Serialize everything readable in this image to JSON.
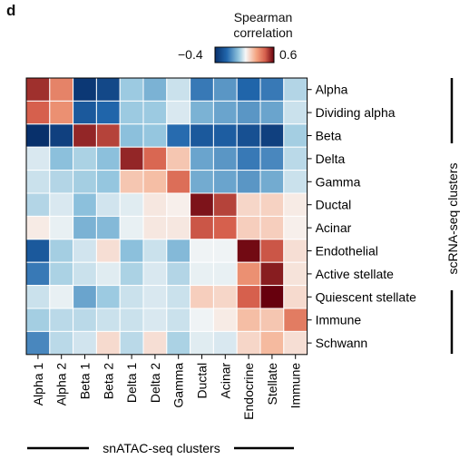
{
  "panel_label": "d",
  "colors": {
    "negative": "#08306b",
    "mid": "#f7f7f7",
    "positive": "#67000d",
    "cell_border": "#ffffff"
  },
  "chart_data": {
    "type": "heatmap",
    "title": "",
    "legend": {
      "title_line1": "Spearman",
      "title_line2": "correlation",
      "min_label": "−0.4",
      "max_label": "0.6",
      "range": [
        -0.4,
        0.6
      ],
      "colormap": "blue-white-red"
    },
    "x_categories": [
      "Alpha 1",
      "Alpha 2",
      "Beta 1",
      "Beta 2",
      "Delta 1",
      "Delta 2",
      "Gamma",
      "Ductal",
      "Acinar",
      "Endocrine",
      "Stellate",
      "Immune"
    ],
    "y_categories": [
      "Alpha",
      "Dividing alpha",
      "Beta",
      "Delta",
      "Gamma",
      "Ductal",
      "Acinar",
      "Endothelial",
      "Active stellate",
      "Quiescent stellate",
      "Immune",
      "Schwann"
    ],
    "xlabel": "snATAC-seq clusters",
    "ylabel": "scRNA-seq clusters",
    "values": [
      [
        0.5,
        0.3,
        -0.38,
        -0.34,
        -0.12,
        -0.16,
        -0.06,
        -0.24,
        -0.2,
        -0.27,
        -0.24,
        -0.09
      ],
      [
        0.4,
        0.26,
        -0.3,
        -0.27,
        -0.12,
        -0.12,
        -0.04,
        -0.16,
        -0.18,
        -0.2,
        -0.18,
        -0.06
      ],
      [
        -0.4,
        -0.36,
        0.52,
        0.46,
        -0.14,
        -0.13,
        -0.26,
        -0.3,
        -0.29,
        -0.32,
        -0.36,
        -0.11
      ],
      [
        -0.04,
        -0.14,
        -0.1,
        -0.14,
        0.52,
        0.38,
        0.12,
        -0.18,
        -0.2,
        -0.24,
        -0.22,
        -0.08
      ],
      [
        -0.06,
        -0.09,
        -0.11,
        -0.13,
        0.12,
        0.14,
        0.36,
        -0.17,
        -0.18,
        -0.2,
        -0.17,
        -0.06
      ],
      [
        -0.09,
        -0.04,
        -0.14,
        -0.05,
        -0.03,
        0.04,
        0.02,
        0.56,
        0.46,
        0.08,
        0.09,
        0.03
      ],
      [
        0.03,
        -0.02,
        -0.16,
        -0.15,
        -0.02,
        0.04,
        0.04,
        0.42,
        0.4,
        0.1,
        0.1,
        0.02
      ],
      [
        -0.3,
        -0.11,
        -0.05,
        0.06,
        -0.14,
        -0.06,
        -0.15,
        -0.01,
        -0.01,
        0.58,
        0.42,
        0.06
      ],
      [
        -0.24,
        -0.1,
        -0.06,
        -0.03,
        -0.1,
        -0.04,
        -0.09,
        -0.02,
        -0.02,
        0.26,
        0.54,
        0.05
      ],
      [
        -0.06,
        -0.02,
        -0.18,
        -0.12,
        -0.06,
        -0.04,
        -0.06,
        0.1,
        0.08,
        0.4,
        0.62,
        0.07
      ],
      [
        -0.11,
        -0.08,
        -0.08,
        -0.06,
        -0.06,
        -0.04,
        -0.06,
        -0.01,
        0.03,
        0.14,
        0.12,
        0.32
      ],
      [
        -0.22,
        -0.08,
        -0.05,
        0.07,
        -0.08,
        0.06,
        -0.1,
        -0.03,
        -0.04,
        0.08,
        0.15,
        0.06
      ]
    ]
  }
}
